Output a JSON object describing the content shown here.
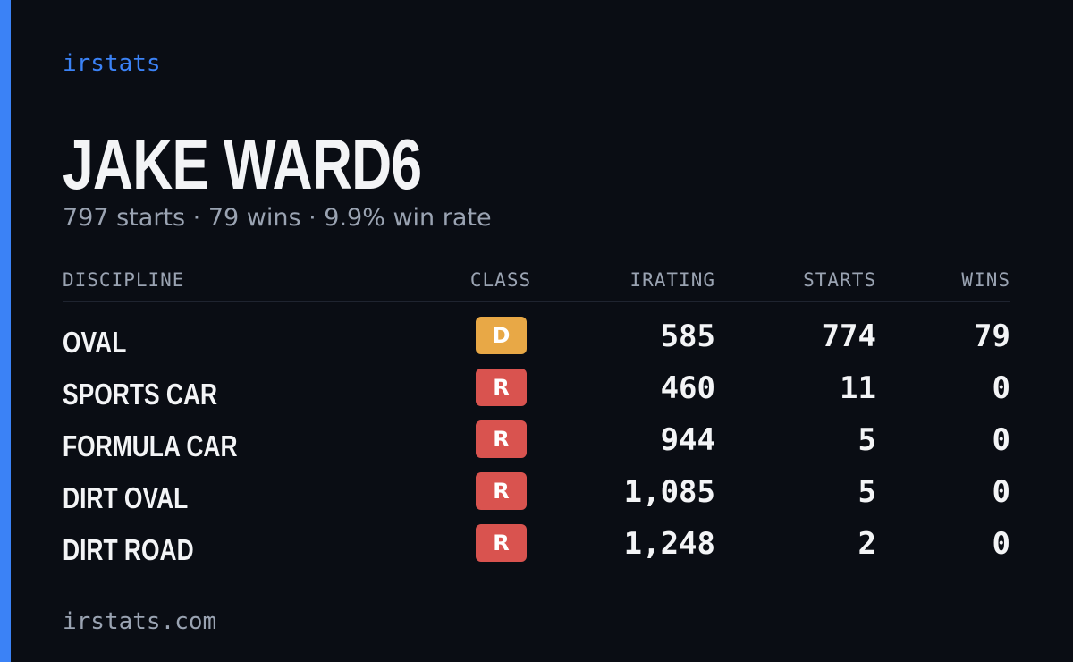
{
  "brand": "irstats",
  "driver": {
    "name": "JAKE WARD6",
    "summary": "797 starts · 79 wins · 9.9% win rate"
  },
  "table": {
    "headers": [
      "DISCIPLINE",
      "CLASS",
      "IRATING",
      "STARTS",
      "WINS"
    ],
    "rows": [
      {
        "discipline": "OVAL",
        "class": "D",
        "class_color": "#e8a846",
        "irating": "585",
        "starts": "774",
        "wins": "79"
      },
      {
        "discipline": "SPORTS CAR",
        "class": "R",
        "class_color": "#d9534f",
        "irating": "460",
        "starts": "11",
        "wins": "0"
      },
      {
        "discipline": "FORMULA CAR",
        "class": "R",
        "class_color": "#d9534f",
        "irating": "944",
        "starts": "5",
        "wins": "0"
      },
      {
        "discipline": "DIRT OVAL",
        "class": "R",
        "class_color": "#d9534f",
        "irating": "1,085",
        "starts": "5",
        "wins": "0"
      },
      {
        "discipline": "DIRT ROAD",
        "class": "R",
        "class_color": "#d9534f",
        "irating": "1,248",
        "starts": "2",
        "wins": "0"
      }
    ]
  },
  "footer": "irstats.com"
}
